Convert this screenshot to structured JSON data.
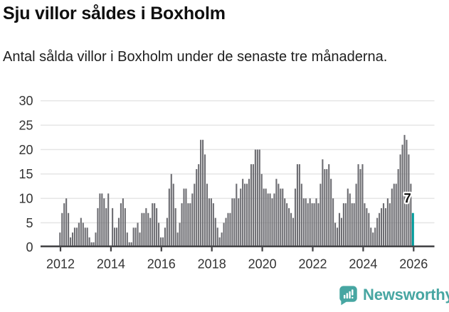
{
  "header": {
    "title": "Sju villor såldes i Boxholm",
    "subtitle": "Antal sålda villor i Boxholm under de senaste tre månaderna."
  },
  "chart_data": {
    "type": "bar",
    "title": "Sju villor såldes i Boxholm",
    "description": "Antal sålda villor i Boxholm under de senaste tre månaderna.",
    "frequency": "monthly",
    "x_start": "2012-01",
    "x_end": "2026-01",
    "x_tick_labels": [
      "2012",
      "2014",
      "2016",
      "2018",
      "2020",
      "2022",
      "2024",
      "2026"
    ],
    "y_ticks": [
      0,
      5,
      10,
      15,
      20,
      25,
      30
    ],
    "ylim": [
      0,
      30
    ],
    "grid": true,
    "values": [
      3,
      7,
      9,
      10,
      7,
      2,
      3,
      4,
      4,
      5,
      6,
      5,
      4,
      4,
      2,
      1,
      1,
      3,
      8,
      11,
      11,
      10,
      8,
      11,
      0,
      8,
      4,
      4,
      6,
      9,
      10,
      8,
      3,
      1,
      1,
      4,
      4,
      5,
      3,
      7,
      7,
      8,
      7,
      6,
      9,
      9,
      8,
      5,
      2,
      2,
      4,
      6,
      12,
      15,
      13,
      8,
      3,
      5,
      9,
      12,
      12,
      9,
      9,
      11,
      13,
      16,
      17,
      22,
      22,
      19,
      13,
      10,
      10,
      9,
      6,
      4,
      2,
      3,
      5,
      6,
      7,
      7,
      10,
      10,
      13,
      10,
      12,
      14,
      13,
      13,
      14,
      17,
      17,
      20,
      20,
      20,
      15,
      12,
      12,
      11,
      11,
      10,
      11,
      14,
      13,
      12,
      12,
      10,
      9,
      8,
      7,
      6,
      12,
      17,
      17,
      13,
      10,
      10,
      9,
      10,
      9,
      9,
      10,
      9,
      13,
      18,
      16,
      16,
      17,
      14,
      10,
      5,
      4,
      7,
      6,
      9,
      9,
      12,
      11,
      9,
      9,
      13,
      17,
      16,
      17,
      9,
      8,
      7,
      4,
      3,
      4,
      6,
      7,
      8,
      9,
      8,
      10,
      9,
      12,
      13,
      13,
      16,
      19,
      21,
      23,
      22,
      19,
      13,
      7
    ],
    "highlighted_last_value": 7,
    "last_value_label": "7",
    "legend": "none"
  },
  "colors": {
    "bar": "#6d6d72",
    "highlight": "#009c9c",
    "grid": "#e4e4e4",
    "axis": "#3f3f42",
    "tick_text": "#333333",
    "value_label": "#111111",
    "logo": "#47a6a2"
  },
  "footer": {
    "brand": "Newsworthy"
  }
}
